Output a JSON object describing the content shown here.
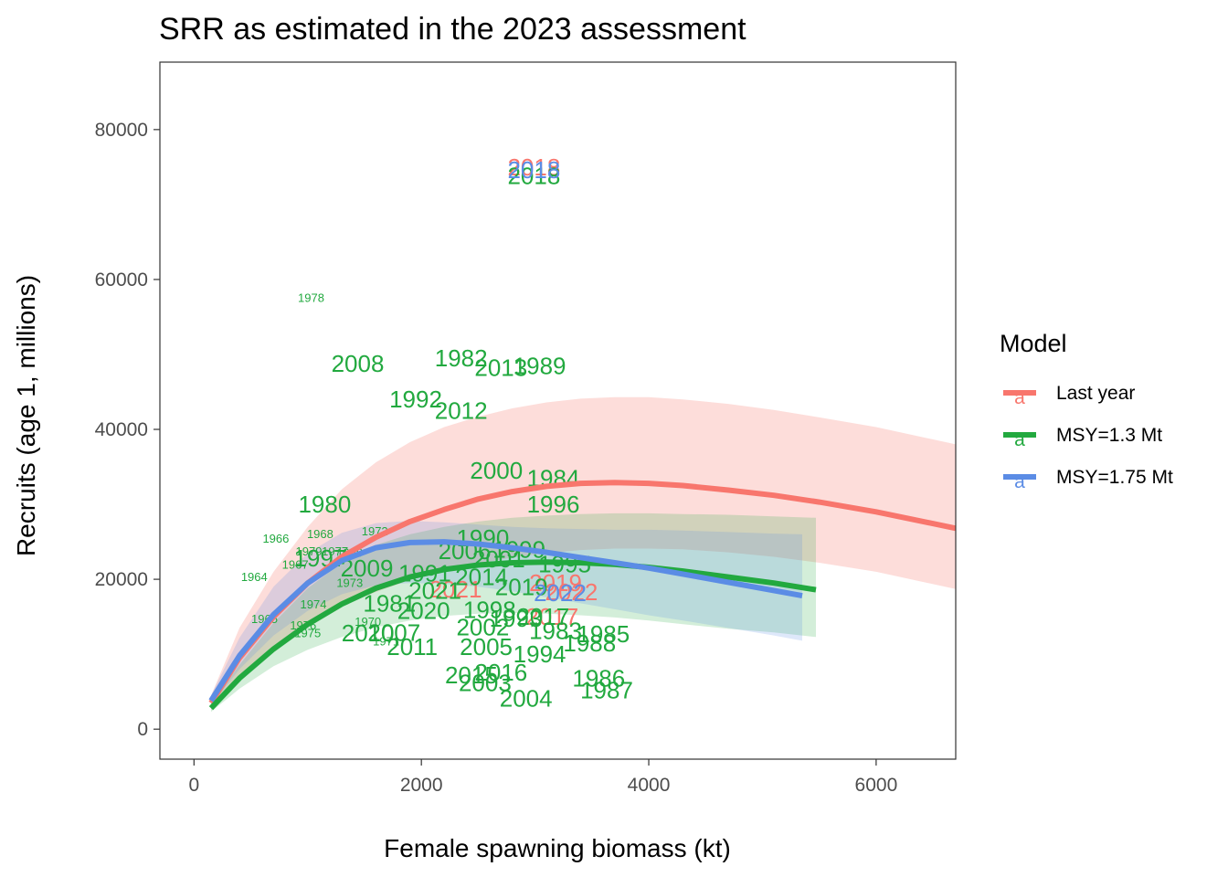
{
  "chart_data": {
    "type": "scatter",
    "title": "SRR as estimated in the 2023 assessment",
    "xlabel": "Female spawning biomass (kt)",
    "ylabel": "Recruits (age 1, millions)",
    "xlim": [
      -300,
      6700
    ],
    "ylim": [
      -4000,
      89000
    ],
    "x_ticks": [
      0,
      2000,
      4000,
      6000
    ],
    "y_ticks": [
      0,
      20000,
      40000,
      60000,
      80000
    ],
    "grid": false,
    "legend": {
      "title": "Model",
      "placement": "right",
      "entries": [
        {
          "name": "Last year",
          "color": "#F8766D"
        },
        {
          "name": "MSY=1.3 Mt",
          "color": "#22A93F"
        },
        {
          "name": "MSY=1.75 Mt",
          "color": "#5B8CE5"
        }
      ]
    },
    "series": [
      {
        "name": "Last year",
        "color": "#F8766D",
        "curve": {
          "x": [
            150,
            400,
            700,
            1000,
            1300,
            1600,
            1900,
            2200,
            2500,
            2800,
            3100,
            3400,
            3700,
            4000,
            4300,
            4700,
            5100,
            5500,
            6000,
            6700
          ],
          "y": [
            3500,
            9500,
            15000,
            19500,
            23000,
            25600,
            27700,
            29300,
            30700,
            31700,
            32400,
            32800,
            32900,
            32800,
            32500,
            31900,
            31200,
            30300,
            29000,
            26800
          ]
        },
        "band_upper": [
          4500,
          13500,
          21000,
          27000,
          32000,
          35600,
          38300,
          40300,
          41700,
          42800,
          43600,
          44100,
          44300,
          44300,
          44000,
          43400,
          42600,
          41600,
          40300,
          38000
        ],
        "band_lower": [
          2600,
          7000,
          11000,
          14000,
          16500,
          18300,
          19900,
          21100,
          22100,
          22900,
          23500,
          23900,
          24100,
          24100,
          24000,
          23600,
          23000,
          22200,
          21000,
          18700
        ],
        "points": [
          {
            "label": "2018",
            "x": 2990,
            "y": 75000
          },
          {
            "label": "2021",
            "x": 2300,
            "y": 18700
          },
          {
            "label": "2019",
            "x": 3180,
            "y": 19500
          },
          {
            "label": "2017",
            "x": 3150,
            "y": 15000
          },
          {
            "label": "2022",
            "x": 3320,
            "y": 18300
          }
        ]
      },
      {
        "name": "MSY=1.3 Mt",
        "color": "#22A93F",
        "curve": {
          "x": [
            150,
            400,
            700,
            1000,
            1300,
            1600,
            1900,
            2200,
            2500,
            2800,
            3100,
            3400,
            3700,
            4000,
            4300,
            4700,
            5100,
            5470
          ],
          "y": [
            2800,
            6800,
            10700,
            14000,
            16700,
            18800,
            20300,
            21300,
            21900,
            22200,
            22300,
            22200,
            22000,
            21600,
            21100,
            20300,
            19500,
            18600
          ]
        },
        "band_upper": [
          3300,
          8600,
          14200,
          18800,
          22200,
          24600,
          26000,
          27000,
          27700,
          28200,
          28500,
          28700,
          28800,
          28800,
          28700,
          28600,
          28400,
          28200
        ],
        "band_lower": [
          2300,
          5400,
          8400,
          10600,
          12300,
          13600,
          14500,
          15100,
          15400,
          15500,
          15400,
          15200,
          14900,
          14500,
          14000,
          13400,
          12900,
          12300
        ],
        "points": [
          {
            "label": "2018",
            "x": 2990,
            "y": 73800
          },
          {
            "label": "2008",
            "x": 1440,
            "y": 48800
          },
          {
            "label": "1982",
            "x": 2350,
            "y": 49500
          },
          {
            "label": "2013",
            "x": 2700,
            "y": 48200
          },
          {
            "label": "1989",
            "x": 3040,
            "y": 48500
          },
          {
            "label": "1992",
            "x": 1950,
            "y": 44000
          },
          {
            "label": "2012",
            "x": 2350,
            "y": 42500
          },
          {
            "label": "2000",
            "x": 2660,
            "y": 34500
          },
          {
            "label": "1984",
            "x": 3160,
            "y": 33500
          },
          {
            "label": "1996",
            "x": 3160,
            "y": 30000
          },
          {
            "label": "1980",
            "x": 1150,
            "y": 30000
          },
          {
            "label": "1990",
            "x": 2540,
            "y": 25500
          },
          {
            "label": "2006",
            "x": 2380,
            "y": 23800
          },
          {
            "label": "1999",
            "x": 2860,
            "y": 24000
          },
          {
            "label": "2001",
            "x": 2680,
            "y": 22700
          },
          {
            "label": "1995",
            "x": 3260,
            "y": 22000
          },
          {
            "label": "2009",
            "x": 1520,
            "y": 21500
          },
          {
            "label": "1991",
            "x": 2030,
            "y": 20800
          },
          {
            "label": "2014",
            "x": 2530,
            "y": 20300
          },
          {
            "label": "1979",
            "x": 1010,
            "y": 23800
          },
          {
            "label": "1977",
            "x": 1240,
            "y": 23800
          },
          {
            "label": "1997",
            "x": 1110,
            "y": 22800
          },
          {
            "label": "2021",
            "x": 2120,
            "y": 18500
          },
          {
            "label": "2019",
            "x": 2880,
            "y": 19000
          },
          {
            "label": "1981",
            "x": 1720,
            "y": 16800
          },
          {
            "label": "2020",
            "x": 2020,
            "y": 15800
          },
          {
            "label": "1998",
            "x": 2600,
            "y": 15900
          },
          {
            "label": "1993",
            "x": 2830,
            "y": 14800
          },
          {
            "label": "2017",
            "x": 3070,
            "y": 15000
          },
          {
            "label": "2002",
            "x": 2540,
            "y": 13600
          },
          {
            "label": "1983",
            "x": 3180,
            "y": 13100
          },
          {
            "label": "1985",
            "x": 3600,
            "y": 12700
          },
          {
            "label": "2010",
            "x": 1530,
            "y": 12800
          },
          {
            "label": "2007",
            "x": 1760,
            "y": 12900
          },
          {
            "label": "1988",
            "x": 3480,
            "y": 11500
          },
          {
            "label": "2011",
            "x": 1920,
            "y": 11000
          },
          {
            "label": "2005",
            "x": 2570,
            "y": 11000
          },
          {
            "label": "1994",
            "x": 3040,
            "y": 10000
          },
          {
            "label": "2016",
            "x": 2700,
            "y": 7600
          },
          {
            "label": "2015",
            "x": 2440,
            "y": 7200
          },
          {
            "label": "2003",
            "x": 2560,
            "y": 6200
          },
          {
            "label": "2004",
            "x": 2920,
            "y": 4100
          },
          {
            "label": "1986",
            "x": 3560,
            "y": 6800
          },
          {
            "label": "1987",
            "x": 3630,
            "y": 5200
          },
          {
            "label": "1978",
            "x": 1030,
            "y": 57600
          },
          {
            "label": "1966",
            "x": 720,
            "y": 25500
          },
          {
            "label": "1968",
            "x": 1110,
            "y": 26100
          },
          {
            "label": "1972",
            "x": 1590,
            "y": 26500
          },
          {
            "label": "1967",
            "x": 890,
            "y": 22000
          },
          {
            "label": "1969",
            "x": 1370,
            "y": 23600
          },
          {
            "label": "1964",
            "x": 530,
            "y": 20400
          },
          {
            "label": "1973",
            "x": 1370,
            "y": 19600
          },
          {
            "label": "1974",
            "x": 1050,
            "y": 16700
          },
          {
            "label": "1965",
            "x": 620,
            "y": 14800
          },
          {
            "label": "1970",
            "x": 1530,
            "y": 14400
          },
          {
            "label": "1976",
            "x": 960,
            "y": 13900
          },
          {
            "label": "1975",
            "x": 1000,
            "y": 12900
          },
          {
            "label": "1971",
            "x": 1690,
            "y": 11800
          }
        ]
      },
      {
        "name": "MSY=1.75 Mt",
        "color": "#5B8CE5",
        "curve": {
          "x": [
            150,
            400,
            700,
            1000,
            1300,
            1600,
            1900,
            2200,
            2500,
            2800,
            3100,
            3400,
            3700,
            4000,
            4300,
            4700,
            5100,
            5350
          ],
          "y": [
            3800,
            9800,
            15300,
            19500,
            22500,
            24200,
            24900,
            25000,
            24700,
            24200,
            23600,
            22900,
            22200,
            21500,
            20700,
            19600,
            18500,
            17800
          ]
        },
        "band_upper": [
          4500,
          12200,
          19000,
          23500,
          26200,
          27500,
          27800,
          27600,
          27300,
          27000,
          26800,
          26700,
          26600,
          26600,
          26500,
          26300,
          26100,
          26000
        ],
        "band_lower": [
          3200,
          8000,
          12500,
          15800,
          18000,
          19200,
          19500,
          19400,
          19000,
          18400,
          17600,
          16800,
          16000,
          15200,
          14500,
          13500,
          12500,
          11800
        ],
        "points": [
          {
            "label": "2018",
            "x": 2990,
            "y": 74600
          },
          {
            "label": "2022",
            "x": 3220,
            "y": 18200
          }
        ]
      }
    ]
  }
}
